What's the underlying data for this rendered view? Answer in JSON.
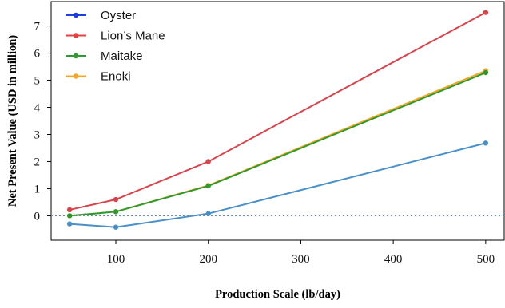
{
  "chart_data": {
    "type": "line",
    "title": "",
    "xlabel": "Production Scale (lb/day)",
    "ylabel": "Net Present Value (USD in million)",
    "xlim": [
      30,
      520
    ],
    "ylim": [
      -0.9,
      7.9
    ],
    "xticks": [
      100,
      200,
      300,
      400,
      500
    ],
    "yticks": [
      0,
      1,
      2,
      3,
      4,
      5,
      6,
      7
    ],
    "x": [
      50,
      100,
      200,
      500
    ],
    "reference_line": {
      "y": 0,
      "style": "dotted",
      "color": "#5b8ec9"
    },
    "legend_position": "top-left",
    "grid": false,
    "legend": [
      {
        "label": "Oyster",
        "color": "#1f3fe0"
      },
      {
        "label": "Lion’s Mane",
        "color": "#e34040"
      },
      {
        "label": "Maitake",
        "color": "#2e9a2e"
      },
      {
        "label": "Enoki",
        "color": "#f5a623"
      }
    ],
    "series": [
      {
        "name": "Oyster",
        "color": "#4a90c8",
        "values": [
          -0.3,
          -0.42,
          0.08,
          2.68
        ]
      },
      {
        "name": "Lion’s Mane",
        "color": "#d9434a",
        "values": [
          0.22,
          0.6,
          2.0,
          7.5
        ]
      },
      {
        "name": "Enoki",
        "color": "#f5a623",
        "values": [
          0.0,
          0.15,
          1.12,
          5.35
        ]
      },
      {
        "name": "Maitake",
        "color": "#2e9a2e",
        "values": [
          0.0,
          0.15,
          1.1,
          5.28
        ]
      }
    ]
  }
}
